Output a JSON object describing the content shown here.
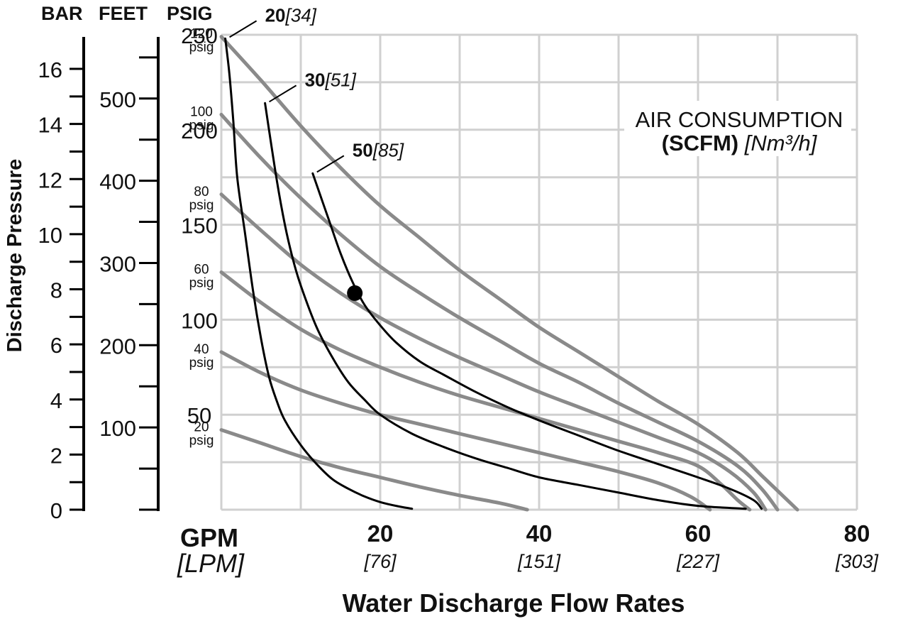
{
  "chart_data": {
    "type": "line",
    "title": "",
    "xlabel": "Water Discharge Flow Rates",
    "ylabel": "Discharge Pressure",
    "x_unit_primary": "GPM",
    "x_unit_secondary": "[LPM]",
    "xlim": [
      0,
      80
    ],
    "x_ticks": [
      {
        "gpm": "20",
        "lpm": "[76]"
      },
      {
        "gpm": "40",
        "lpm": "[151]"
      },
      {
        "gpm": "60",
        "lpm": "[227]"
      },
      {
        "gpm": "80",
        "lpm": "[303]"
      }
    ],
    "grid": true,
    "y_axes": {
      "bar": {
        "label": "BAR",
        "ticks": [
          "0",
          "2",
          "4",
          "6",
          "8",
          "10",
          "12",
          "14",
          "16"
        ]
      },
      "feet": {
        "label": "FEET",
        "ticks": [
          "100",
          "200",
          "300",
          "400",
          "500"
        ]
      },
      "psig": {
        "label": "PSIG",
        "ticks": [
          "50",
          "100",
          "150",
          "200",
          "250"
        ]
      }
    },
    "ylim_psig": [
      0,
      250
    ],
    "air_consumption_label": {
      "line1": "AIR CONSUMPTION",
      "bold": "(SCFM)",
      "italic": "[Nm³/h]"
    },
    "series": [
      {
        "name": "120 psig",
        "label_top": "120",
        "label_bottom": "psig",
        "kind": "air_pressure",
        "points": [
          [
            0,
            249
          ],
          [
            5,
            226
          ],
          [
            10,
            202
          ],
          [
            15,
            180
          ],
          [
            20,
            160
          ],
          [
            25,
            143
          ],
          [
            30,
            126
          ],
          [
            35,
            111
          ],
          [
            40,
            96
          ],
          [
            45,
            83
          ],
          [
            50,
            70
          ],
          [
            55,
            57
          ],
          [
            60,
            45
          ],
          [
            65,
            30
          ],
          [
            68,
            18
          ],
          [
            71,
            6
          ],
          [
            72.5,
            0
          ]
        ]
      },
      {
        "name": "100 psig",
        "label_top": "100",
        "label_bottom": "psig",
        "kind": "air_pressure",
        "points": [
          [
            0,
            208
          ],
          [
            5,
            185
          ],
          [
            10,
            164
          ],
          [
            15,
            145
          ],
          [
            20,
            128
          ],
          [
            25,
            114
          ],
          [
            30,
            101
          ],
          [
            35,
            89
          ],
          [
            40,
            77
          ],
          [
            45,
            67
          ],
          [
            50,
            56
          ],
          [
            55,
            46
          ],
          [
            60,
            36
          ],
          [
            65,
            23
          ],
          [
            68,
            11
          ],
          [
            70,
            0
          ]
        ]
      },
      {
        "name": "80 psig",
        "label_top": "80",
        "label_bottom": "psig",
        "kind": "air_pressure",
        "points": [
          [
            0,
            166
          ],
          [
            5,
            147
          ],
          [
            10,
            129
          ],
          [
            15,
            114
          ],
          [
            20,
            101
          ],
          [
            25,
            90
          ],
          [
            30,
            80
          ],
          [
            35,
            71
          ],
          [
            40,
            62
          ],
          [
            45,
            54
          ],
          [
            50,
            46
          ],
          [
            55,
            38
          ],
          [
            60,
            30
          ],
          [
            64,
            20
          ],
          [
            67,
            9
          ],
          [
            68.5,
            0
          ]
        ]
      },
      {
        "name": "60 psig",
        "label_top": "60",
        "label_bottom": "psig",
        "kind": "air_pressure",
        "points": [
          [
            0,
            125
          ],
          [
            5,
            109
          ],
          [
            10,
            95
          ],
          [
            15,
            84
          ],
          [
            20,
            75
          ],
          [
            25,
            67
          ],
          [
            30,
            60
          ],
          [
            35,
            54
          ],
          [
            40,
            48
          ],
          [
            45,
            42
          ],
          [
            50,
            36
          ],
          [
            55,
            30
          ],
          [
            60,
            23
          ],
          [
            63,
            13
          ],
          [
            65,
            5
          ],
          [
            66.5,
            0
          ]
        ]
      },
      {
        "name": "40 psig",
        "label_top": "40",
        "label_bottom": "psig",
        "kind": "air_pressure",
        "points": [
          [
            0,
            83
          ],
          [
            5,
            72
          ],
          [
            10,
            63
          ],
          [
            15,
            56
          ],
          [
            20,
            50
          ],
          [
            25,
            45
          ],
          [
            30,
            40
          ],
          [
            35,
            35
          ],
          [
            40,
            30
          ],
          [
            45,
            25
          ],
          [
            50,
            20
          ],
          [
            55,
            14
          ],
          [
            59,
            7
          ],
          [
            61.5,
            0
          ]
        ]
      },
      {
        "name": "20 psig",
        "label_top": "20",
        "label_bottom": "psig",
        "kind": "air_pressure",
        "points": [
          [
            0,
            42
          ],
          [
            5,
            35
          ],
          [
            10,
            28
          ],
          [
            15,
            22
          ],
          [
            20,
            17
          ],
          [
            25,
            12
          ],
          [
            30,
            7.5
          ],
          [
            35,
            3.5
          ],
          [
            38.5,
            0
          ]
        ]
      },
      {
        "name": "20[34]",
        "bold": "20",
        "italic": "[34]",
        "kind": "air_consumption",
        "points": [
          [
            0.5,
            248
          ],
          [
            1,
            230
          ],
          [
            1.5,
            205
          ],
          [
            2,
            175
          ],
          [
            3,
            145
          ],
          [
            4,
            115
          ],
          [
            5,
            90
          ],
          [
            6,
            70
          ],
          [
            7,
            57
          ],
          [
            8,
            47
          ],
          [
            10,
            34
          ],
          [
            12,
            24
          ],
          [
            14,
            16
          ],
          [
            16,
            11
          ],
          [
            18,
            7
          ],
          [
            20,
            4
          ],
          [
            22,
            2
          ],
          [
            24,
            0.5
          ]
        ]
      },
      {
        "name": "30[51]",
        "bold": "30",
        "italic": "[51]",
        "kind": "air_consumption",
        "points": [
          [
            5.5,
            214
          ],
          [
            6,
            200
          ],
          [
            7,
            173
          ],
          [
            8,
            150
          ],
          [
            9,
            132
          ],
          [
            10,
            118
          ],
          [
            12,
            96
          ],
          [
            14,
            80
          ],
          [
            16,
            67
          ],
          [
            18,
            58
          ],
          [
            20,
            50
          ],
          [
            24,
            40
          ],
          [
            28,
            33
          ],
          [
            32,
            27
          ],
          [
            36,
            22
          ],
          [
            40,
            17
          ],
          [
            45,
            13
          ],
          [
            50,
            9
          ],
          [
            55,
            5
          ],
          [
            60,
            2
          ],
          [
            66,
            0.5
          ]
        ]
      },
      {
        "name": "50[85]",
        "bold": "50",
        "italic": "[85]",
        "kind": "air_consumption",
        "points": [
          [
            11.5,
            177
          ],
          [
            12.5,
            165
          ],
          [
            13.5,
            153
          ],
          [
            15,
            135
          ],
          [
            16.5,
            120
          ],
          [
            18,
            108
          ],
          [
            20,
            97
          ],
          [
            22,
            88
          ],
          [
            25,
            78
          ],
          [
            28,
            71
          ],
          [
            32,
            62
          ],
          [
            36,
            54
          ],
          [
            40,
            47
          ],
          [
            45,
            39
          ],
          [
            50,
            31
          ],
          [
            55,
            24
          ],
          [
            60,
            17
          ],
          [
            64,
            11
          ],
          [
            67,
            5
          ],
          [
            68,
            0.5
          ]
        ]
      }
    ],
    "annotations": [
      {
        "type": "point",
        "x": 16.8,
        "y": 114
      }
    ]
  }
}
